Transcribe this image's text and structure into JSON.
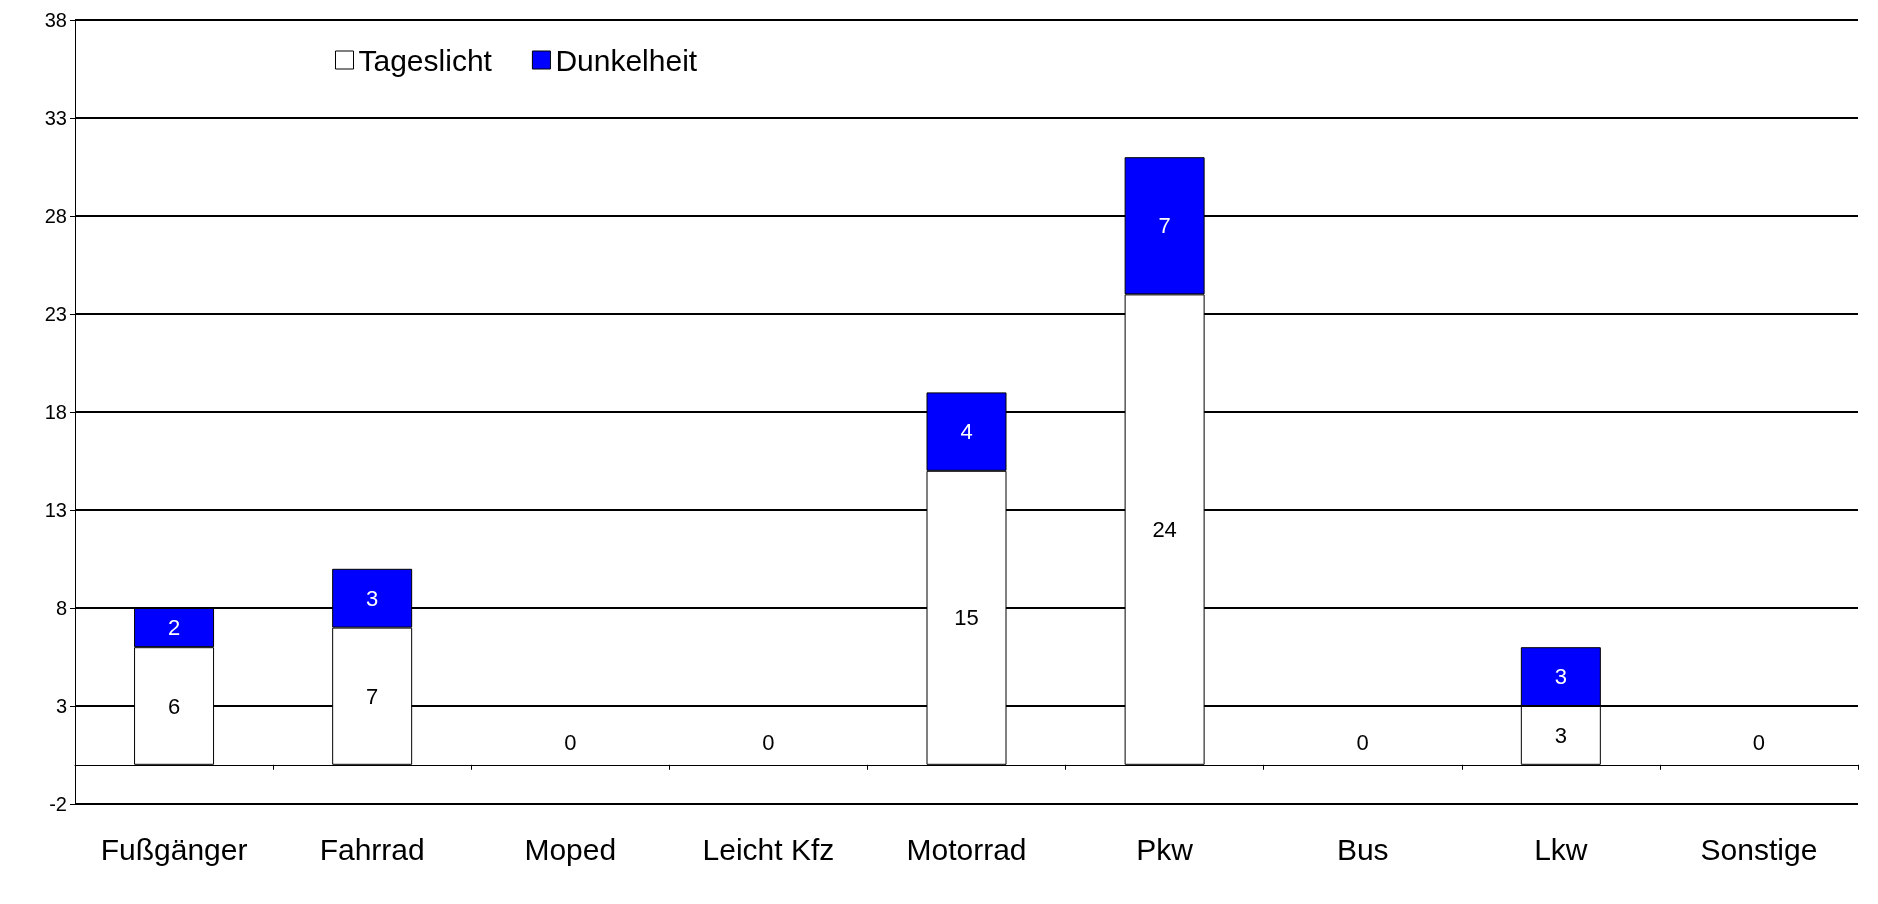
{
  "chart_data": {
    "type": "bar",
    "stacked": true,
    "categories": [
      "Fußgänger",
      "Fahrrad",
      "Moped",
      "Leicht Kfz",
      "Motorrad",
      "Pkw",
      "Bus",
      "Lkw",
      "Sonstige"
    ],
    "series": [
      {
        "name": "Tageslicht",
        "color": "#ffffff",
        "values": [
          6,
          7,
          0,
          0,
          15,
          24,
          0,
          3,
          0
        ],
        "value_labels": [
          "6",
          "7",
          null,
          null,
          "15",
          "24",
          null,
          "3",
          null
        ]
      },
      {
        "name": "Dunkelheit",
        "color": "#0000ff",
        "values": [
          2,
          3,
          0,
          0,
          4,
          7,
          0,
          3,
          0
        ],
        "value_labels": [
          "2",
          "3",
          "0",
          "0",
          "4",
          "7",
          "0",
          "3",
          "0"
        ]
      }
    ],
    "ylim": [
      -2,
      38
    ],
    "yticks": [
      -2,
      3,
      8,
      13,
      18,
      23,
      28,
      33,
      38
    ],
    "grid": "y",
    "legend": "top left"
  }
}
